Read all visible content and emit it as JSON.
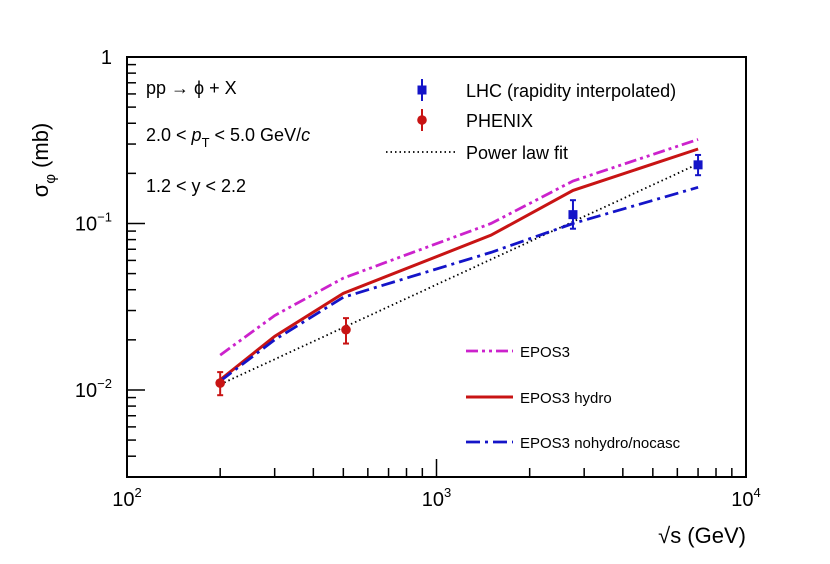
{
  "chart_data": {
    "type": "line",
    "xscale": "log",
    "yscale": "log",
    "xlim": [
      100,
      10000
    ],
    "ylim": [
      0.003,
      1
    ],
    "xlabel": "√s (GeV)",
    "ylabel_main": "σ",
    "ylabel_sub": "φ",
    "ylabel_unit": "(mb)",
    "x_ticks": [
      {
        "value": 100,
        "base": "10",
        "exp": "2"
      },
      {
        "value": 1000,
        "base": "10",
        "exp": "3"
      },
      {
        "value": 10000,
        "base": "10",
        "exp": "4"
      }
    ],
    "y_ticks": [
      {
        "value": 1,
        "label": "1"
      },
      {
        "value": 0.1,
        "base": "10",
        "exp": "−1"
      },
      {
        "value": 0.01,
        "base": "10",
        "exp": "−2"
      }
    ],
    "annotations": {
      "process": "pp → ϕ + X",
      "pt_prefix": "2.0 < ",
      "pt_var": "p",
      "pt_sub": "T",
      "pt_suffix": " < 5.0 GeV/",
      "pt_c": "c",
      "rapidity": "1.2 < y < 2.2"
    },
    "points": [
      {
        "name": "LHC (rapidity interpolated)",
        "color": "#1414c8",
        "marker": "square",
        "data": [
          {
            "x": 2760,
            "y": 0.113,
            "ylo": 0.093,
            "yhi": 0.138
          },
          {
            "x": 7000,
            "y": 0.225,
            "ylo": 0.195,
            "yhi": 0.258
          }
        ]
      },
      {
        "name": "PHENIX",
        "color": "#c81414",
        "marker": "circle",
        "data": [
          {
            "x": 200,
            "y": 0.011,
            "ylo": 0.0093,
            "yhi": 0.0128
          },
          {
            "x": 510,
            "y": 0.023,
            "ylo": 0.019,
            "yhi": 0.027
          }
        ]
      }
    ],
    "series": [
      {
        "name": "Power law fit",
        "color": "#000000",
        "style": "dotted",
        "x": [
          200,
          7000
        ],
        "y": [
          0.0108,
          0.228
        ]
      },
      {
        "name": "EPOS3",
        "color": "#cc22cc",
        "style": "dash-dot-dot",
        "x": [
          200,
          300,
          500,
          1500,
          2760,
          7000
        ],
        "y": [
          0.0162,
          0.028,
          0.047,
          0.1,
          0.18,
          0.32
        ]
      },
      {
        "name": "EPOS3 hydro",
        "color": "#c81414",
        "style": "solid",
        "x": [
          200,
          300,
          500,
          1500,
          2760,
          7000
        ],
        "y": [
          0.0115,
          0.021,
          0.038,
          0.085,
          0.158,
          0.28
        ]
      },
      {
        "name": "EPOS3 nohydro/nocasc",
        "color": "#1414c8",
        "style": "dash-dot",
        "x": [
          200,
          300,
          500,
          1500,
          2760,
          7000
        ],
        "y": [
          0.0113,
          0.02,
          0.036,
          0.067,
          0.1,
          0.165
        ]
      }
    ],
    "legend_top": [
      {
        "label": "LHC (rapidity interpolated)",
        "kind": "square",
        "color": "#1414c8"
      },
      {
        "label": "PHENIX",
        "kind": "circle",
        "color": "#c81414"
      },
      {
        "label": "Power law fit",
        "kind": "dotted",
        "color": "#000000"
      }
    ],
    "legend_bottom": [
      {
        "label": "EPOS3",
        "kind": "dash-dot-dot",
        "color": "#cc22cc"
      },
      {
        "label": "EPOS3 hydro",
        "kind": "solid",
        "color": "#c81414"
      },
      {
        "label": "EPOS3 nohydro/nocasc",
        "kind": "dash-dot",
        "color": "#1414c8"
      }
    ]
  }
}
